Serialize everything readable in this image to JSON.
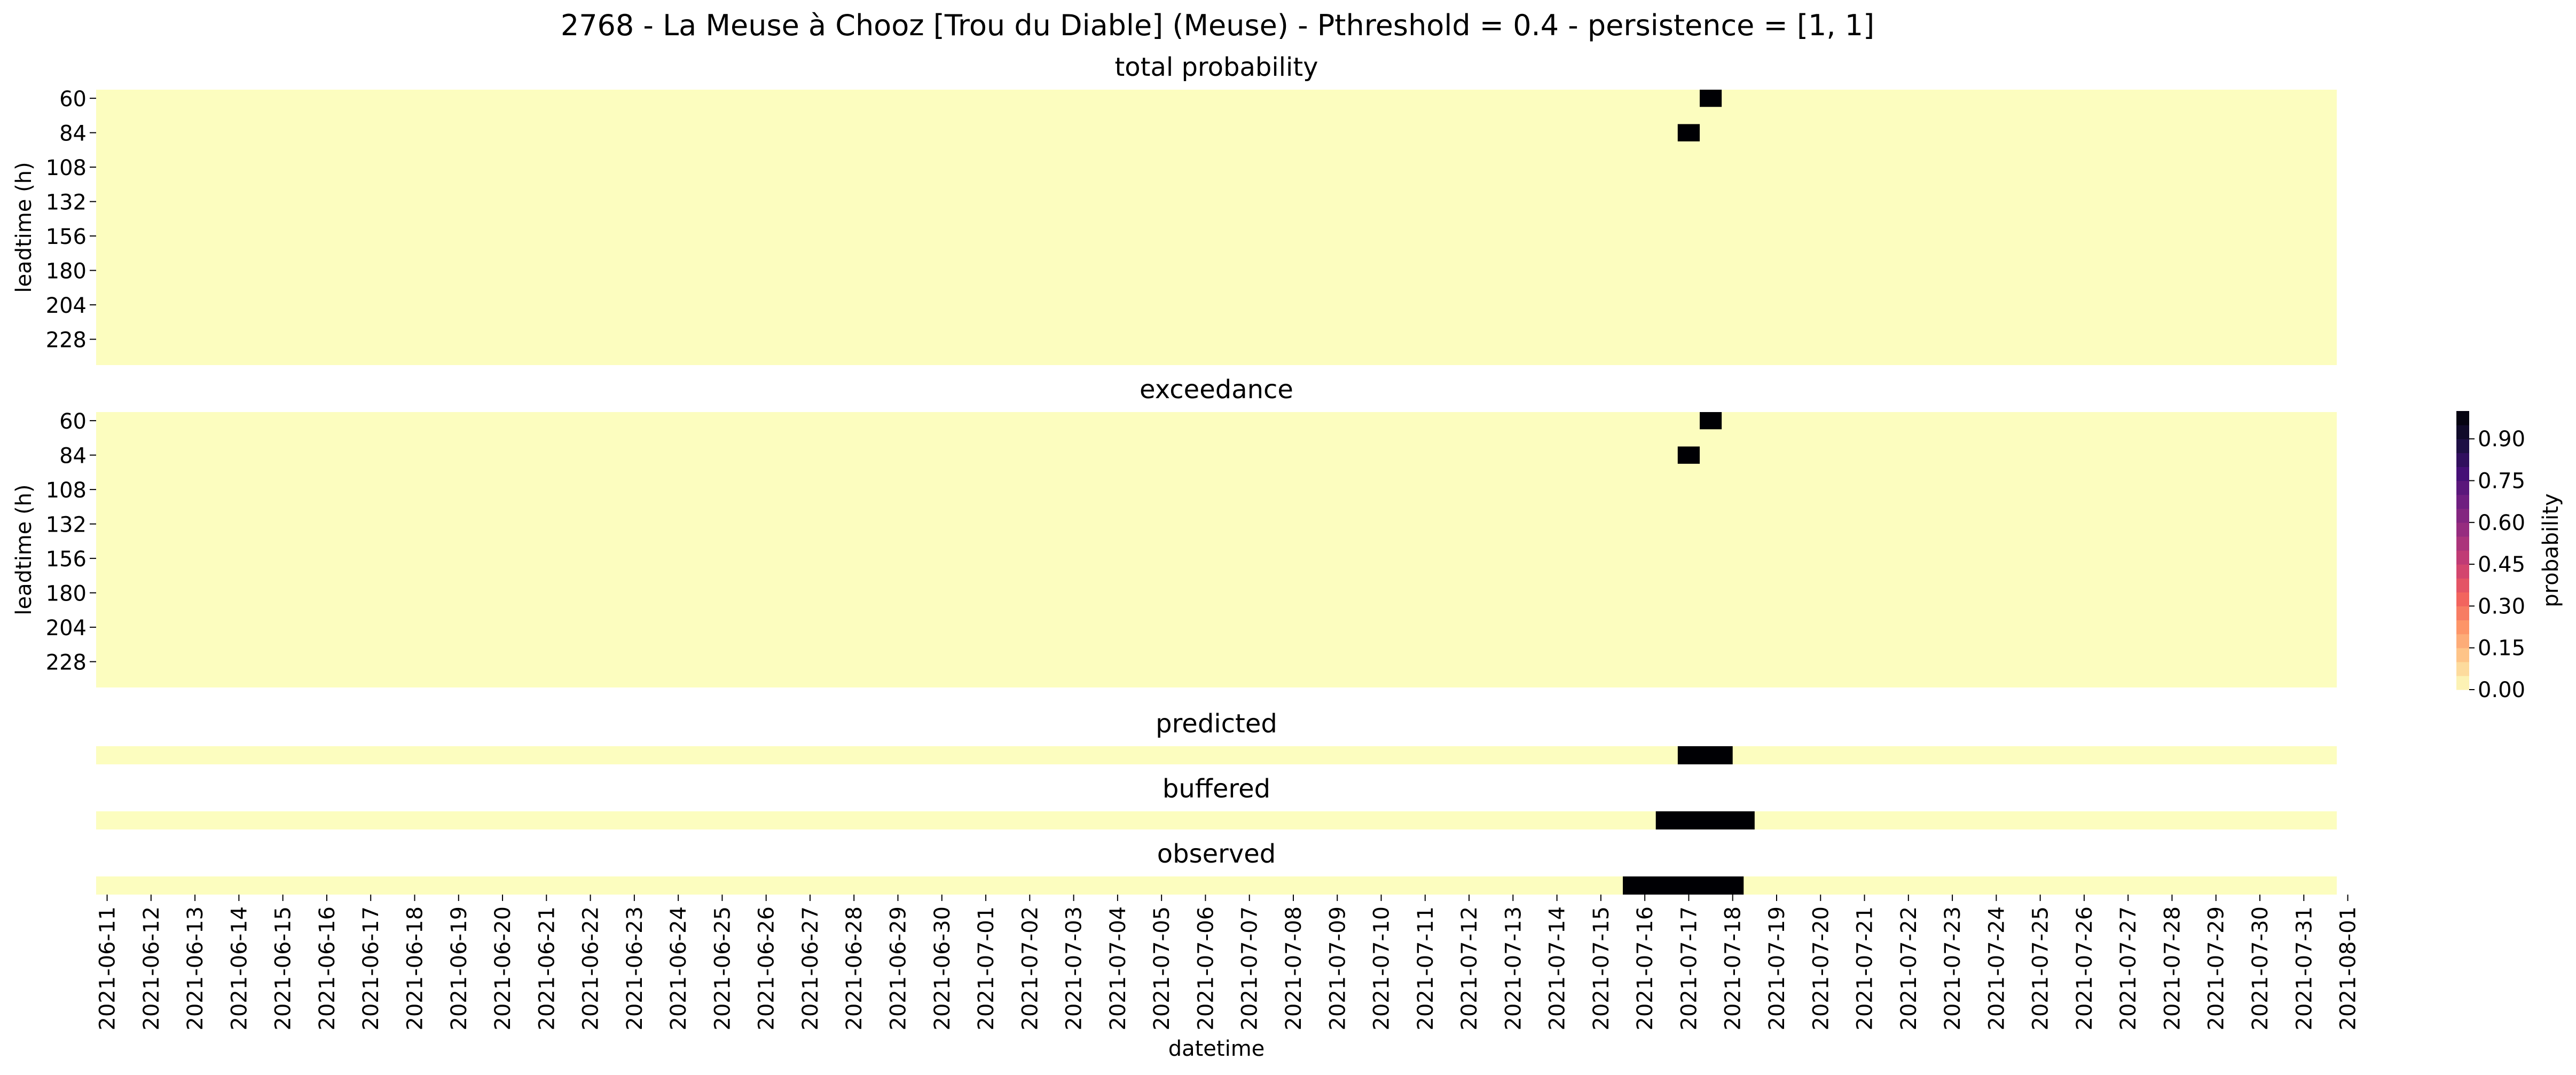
{
  "figure_title": "2768 - La Meuse à Chooz [Trou du Diable] (Meuse) - Pthreshold = 0.4 - persistence = [1, 1]",
  "colors": {
    "low": "#fcfdbf",
    "high": "#000004",
    "colormap": "magma_r",
    "colormap_stops": [
      "#fcfdbf",
      "#feca8d",
      "#fd9668",
      "#f1605d",
      "#cd4071",
      "#9e2f7f",
      "#721f81",
      "#440f76",
      "#180f3d",
      "#000004"
    ]
  },
  "colorbar": {
    "label": "probability",
    "ticks": [
      "0.00",
      "0.15",
      "0.30",
      "0.45",
      "0.60",
      "0.75",
      "0.90"
    ],
    "range": [
      0,
      1
    ],
    "levels": 20
  },
  "chart_data": [
    {
      "type": "heatmap",
      "title": "total probability",
      "ylabel": "leadtime (h)",
      "yticks": [
        "60",
        "84",
        "108",
        "132",
        "156",
        "180",
        "204",
        "228"
      ],
      "leadtimes_h": [
        60,
        72,
        84,
        96,
        108,
        120,
        132,
        144,
        156,
        168,
        180,
        192,
        204,
        216,
        228,
        240
      ],
      "x_start": "2021-06-11",
      "x_end": "2021-08-01",
      "x_step_h": 12,
      "background_value": 0.0,
      "cells": [
        {
          "leadtime_h": 60,
          "time": "2021-07-17 12:00",
          "value": 1.0
        },
        {
          "leadtime_h": 84,
          "time": "2021-07-17 00:00",
          "value": 1.0
        }
      ]
    },
    {
      "type": "heatmap",
      "title": "exceedance",
      "ylabel": "leadtime (h)",
      "yticks": [
        "60",
        "84",
        "108",
        "132",
        "156",
        "180",
        "204",
        "228"
      ],
      "leadtimes_h": [
        60,
        72,
        84,
        96,
        108,
        120,
        132,
        144,
        156,
        168,
        180,
        192,
        204,
        216,
        228,
        240
      ],
      "x_start": "2021-06-11",
      "x_end": "2021-08-01",
      "x_step_h": 12,
      "background_value": 0.0,
      "cells": [
        {
          "leadtime_h": 60,
          "time": "2021-07-17 12:00",
          "value": 1.0
        },
        {
          "leadtime_h": 84,
          "time": "2021-07-17 00:00",
          "value": 1.0
        }
      ]
    },
    {
      "type": "heatmap",
      "title": "predicted",
      "x_start": "2021-06-11",
      "x_end": "2021-08-01",
      "x_step_h": 12,
      "background_value": 0.0,
      "events": [
        {
          "start": "2021-07-17 00:00",
          "end": "2021-07-17 18:00",
          "value": 1.0
        }
      ]
    },
    {
      "type": "heatmap",
      "title": "buffered",
      "x_start": "2021-06-11",
      "x_end": "2021-08-01",
      "x_step_h": 12,
      "background_value": 0.0,
      "events": [
        {
          "start": "2021-07-16 12:00",
          "end": "2021-07-18 06:00",
          "value": 1.0
        }
      ]
    },
    {
      "type": "heatmap",
      "title": "observed",
      "xlabel": "datetime",
      "x_start": "2021-06-11",
      "x_end": "2021-08-01",
      "x_step_h": 12,
      "background_value": 0.0,
      "events": [
        {
          "start": "2021-07-15 18:00",
          "end": "2021-07-18 00:00",
          "value": 1.0
        }
      ],
      "xticks": [
        "2021-06-11",
        "2021-06-12",
        "2021-06-13",
        "2021-06-14",
        "2021-06-15",
        "2021-06-16",
        "2021-06-17",
        "2021-06-18",
        "2021-06-19",
        "2021-06-20",
        "2021-06-21",
        "2021-06-22",
        "2021-06-23",
        "2021-06-24",
        "2021-06-25",
        "2021-06-26",
        "2021-06-27",
        "2021-06-28",
        "2021-06-29",
        "2021-06-30",
        "2021-07-01",
        "2021-07-02",
        "2021-07-03",
        "2021-07-04",
        "2021-07-05",
        "2021-07-06",
        "2021-07-07",
        "2021-07-08",
        "2021-07-09",
        "2021-07-10",
        "2021-07-11",
        "2021-07-12",
        "2021-07-13",
        "2021-07-14",
        "2021-07-15",
        "2021-07-16",
        "2021-07-17",
        "2021-07-18",
        "2021-07-19",
        "2021-07-20",
        "2021-07-21",
        "2021-07-22",
        "2021-07-23",
        "2021-07-24",
        "2021-07-25",
        "2021-07-26",
        "2021-07-27",
        "2021-07-28",
        "2021-07-29",
        "2021-07-30",
        "2021-07-31",
        "2021-08-01"
      ]
    }
  ]
}
